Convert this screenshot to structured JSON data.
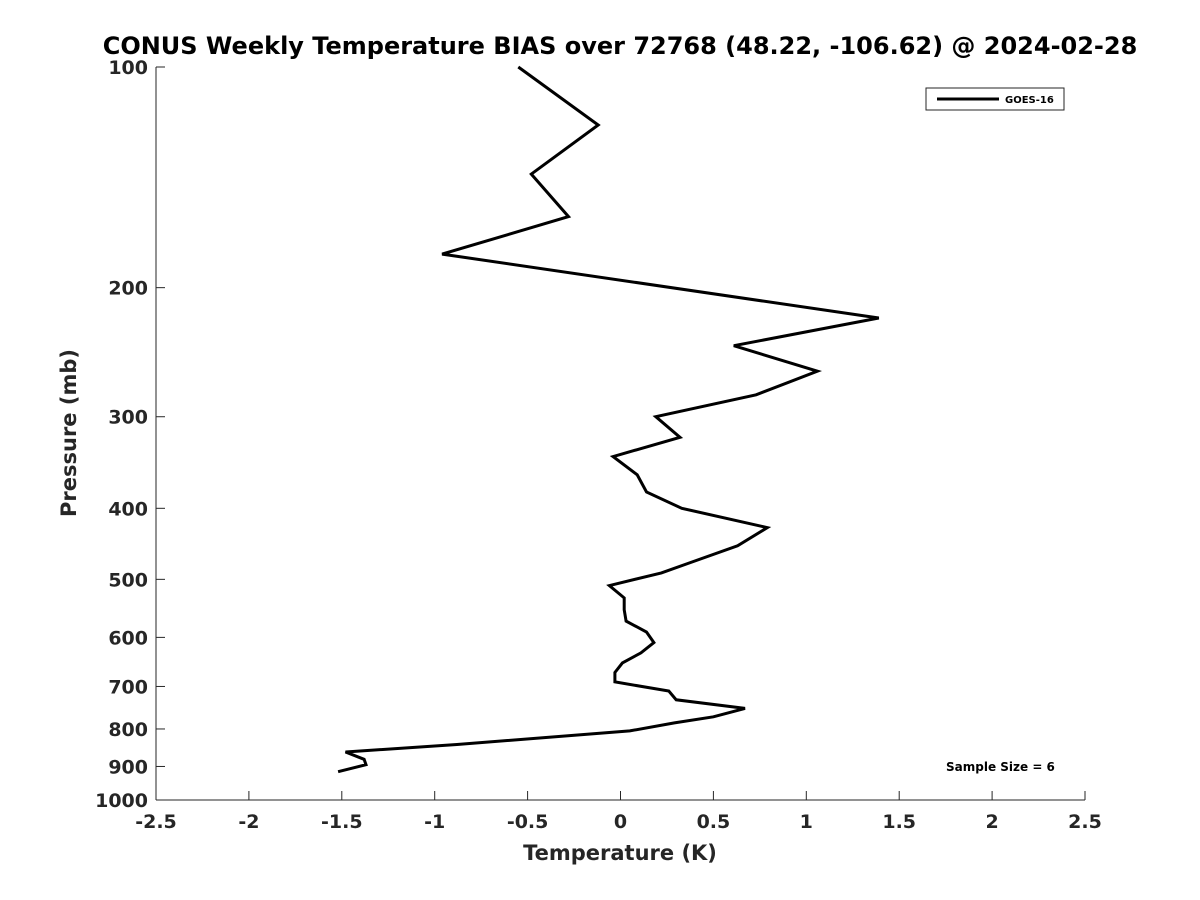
{
  "chart_data": {
    "type": "line",
    "title": "CONUS Weekly Temperature BIAS over 72768 (48.22, -106.62) @ 2024-02-28",
    "xlabel": "Temperature (K)",
    "ylabel": "Pressure (mb)",
    "xlim": [
      -2.5,
      2.5
    ],
    "ylim": [
      100,
      1000
    ],
    "y_scale": "log",
    "y_reversed": true,
    "grid": false,
    "legend_position": "top-right",
    "x_ticks": [
      -2.5,
      -2,
      -1.5,
      -1,
      -0.5,
      0,
      0.5,
      1,
      1.5,
      2,
      2.5
    ],
    "x_tick_labels": [
      "-2.5",
      "-2",
      "-1.5",
      "-1",
      "-0.5",
      "0",
      "0.5",
      "1",
      "1.5",
      "2",
      "2.5"
    ],
    "y_ticks": [
      100,
      200,
      300,
      400,
      500,
      600,
      700,
      800,
      900,
      1000
    ],
    "y_tick_labels": [
      "100",
      "200",
      "300",
      "400",
      "500",
      "600",
      "700",
      "800",
      "900",
      "1000"
    ],
    "series": [
      {
        "name": "GOES-16",
        "color": "#000000",
        "points": [
          {
            "x": -0.55,
            "y": 100
          },
          {
            "x": -0.12,
            "y": 120
          },
          {
            "x": -0.48,
            "y": 140
          },
          {
            "x": -0.28,
            "y": 160
          },
          {
            "x": -0.96,
            "y": 180
          },
          {
            "x": 1.39,
            "y": 220
          },
          {
            "x": 0.61,
            "y": 240
          },
          {
            "x": 1.06,
            "y": 260
          },
          {
            "x": 0.73,
            "y": 280
          },
          {
            "x": 0.19,
            "y": 300
          },
          {
            "x": 0.32,
            "y": 320
          },
          {
            "x": -0.04,
            "y": 340
          },
          {
            "x": 0.09,
            "y": 360
          },
          {
            "x": 0.14,
            "y": 380
          },
          {
            "x": 0.33,
            "y": 400
          },
          {
            "x": 0.79,
            "y": 425
          },
          {
            "x": 0.63,
            "y": 450
          },
          {
            "x": 0.37,
            "y": 475
          },
          {
            "x": 0.22,
            "y": 490
          },
          {
            "x": -0.06,
            "y": 510
          },
          {
            "x": 0.02,
            "y": 530
          },
          {
            "x": 0.02,
            "y": 550
          },
          {
            "x": 0.03,
            "y": 570
          },
          {
            "x": 0.14,
            "y": 590
          },
          {
            "x": 0.18,
            "y": 610
          },
          {
            "x": 0.11,
            "y": 630
          },
          {
            "x": 0.01,
            "y": 650
          },
          {
            "x": -0.03,
            "y": 670
          },
          {
            "x": -0.03,
            "y": 690
          },
          {
            "x": 0.26,
            "y": 710
          },
          {
            "x": 0.3,
            "y": 730
          },
          {
            "x": 0.67,
            "y": 750
          },
          {
            "x": 0.5,
            "y": 770
          },
          {
            "x": 0.29,
            "y": 785
          },
          {
            "x": 0.05,
            "y": 805
          },
          {
            "x": -0.88,
            "y": 840
          },
          {
            "x": -1.48,
            "y": 860
          },
          {
            "x": -1.38,
            "y": 880
          },
          {
            "x": -1.37,
            "y": 895
          },
          {
            "x": -1.52,
            "y": 915
          }
        ]
      }
    ],
    "annotations": [
      {
        "text": "Sample Size = 6",
        "position": "bottom-right"
      }
    ]
  }
}
